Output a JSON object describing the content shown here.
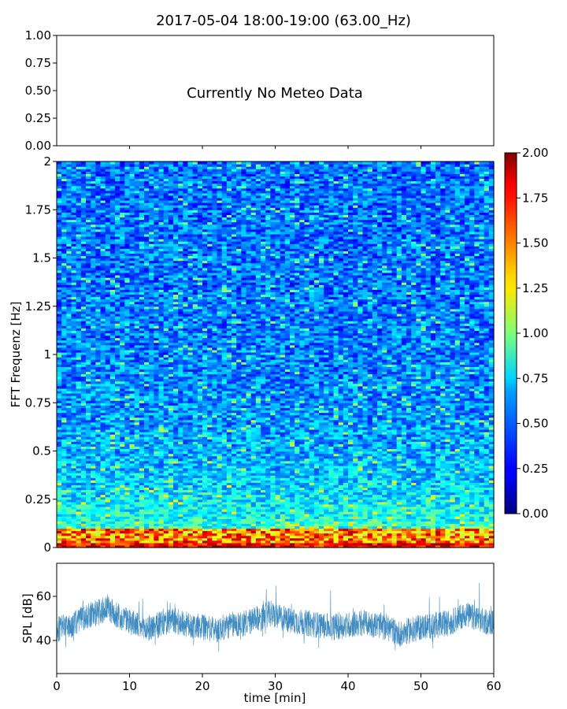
{
  "chart_data": [
    {
      "type": "line",
      "title": "2017-05-04 18:00-19:00 (63.00_Hz)",
      "annotation": "Currently No Meteo Data",
      "ylim": [
        0,
        1
      ],
      "yticks": [
        "0.00",
        "0.25",
        "0.50",
        "0.75",
        "1.00"
      ],
      "series": []
    },
    {
      "type": "heatmap",
      "ylabel": "FFT Frequenz [Hz]",
      "xlim": [
        0,
        60
      ],
      "ylim": [
        0,
        2
      ],
      "yticks": [
        "0",
        "0.25",
        "0.5",
        "0.75",
        "1",
        "1.25",
        "1.5",
        "1.75",
        "2"
      ],
      "colormap": "jet",
      "colorbar": {
        "range": [
          0,
          2
        ],
        "ticks": [
          "0.00",
          "0.25",
          "0.50",
          "0.75",
          "1.00",
          "1.25",
          "1.50",
          "1.75",
          "2.00"
        ]
      }
    },
    {
      "type": "line",
      "xlabel": "time [min]",
      "ylabel": "SPL [dB]",
      "xlim": [
        0,
        60
      ],
      "ylim": [
        25,
        75
      ],
      "xticks": [
        "0",
        "10",
        "20",
        "30",
        "40",
        "50",
        "60"
      ],
      "yticks": [
        "40",
        "60"
      ],
      "series": [
        {
          "name": "SPL",
          "color": "#1f77b4",
          "x": [
            0,
            2,
            4,
            6,
            7,
            8,
            10,
            12,
            14,
            16,
            18,
            20,
            22,
            24,
            26,
            28,
            29,
            30,
            32,
            34,
            36,
            38,
            40,
            42,
            44,
            46,
            47,
            48,
            50,
            52,
            54,
            56,
            58,
            60
          ],
          "values": [
            45,
            47,
            51,
            53,
            55,
            52,
            49,
            45,
            47,
            49,
            47,
            46,
            45,
            47,
            48,
            50,
            52,
            51,
            49,
            48,
            47,
            46,
            47,
            48,
            47,
            45,
            43,
            44,
            46,
            47,
            48,
            52,
            49,
            48
          ]
        }
      ]
    }
  ]
}
